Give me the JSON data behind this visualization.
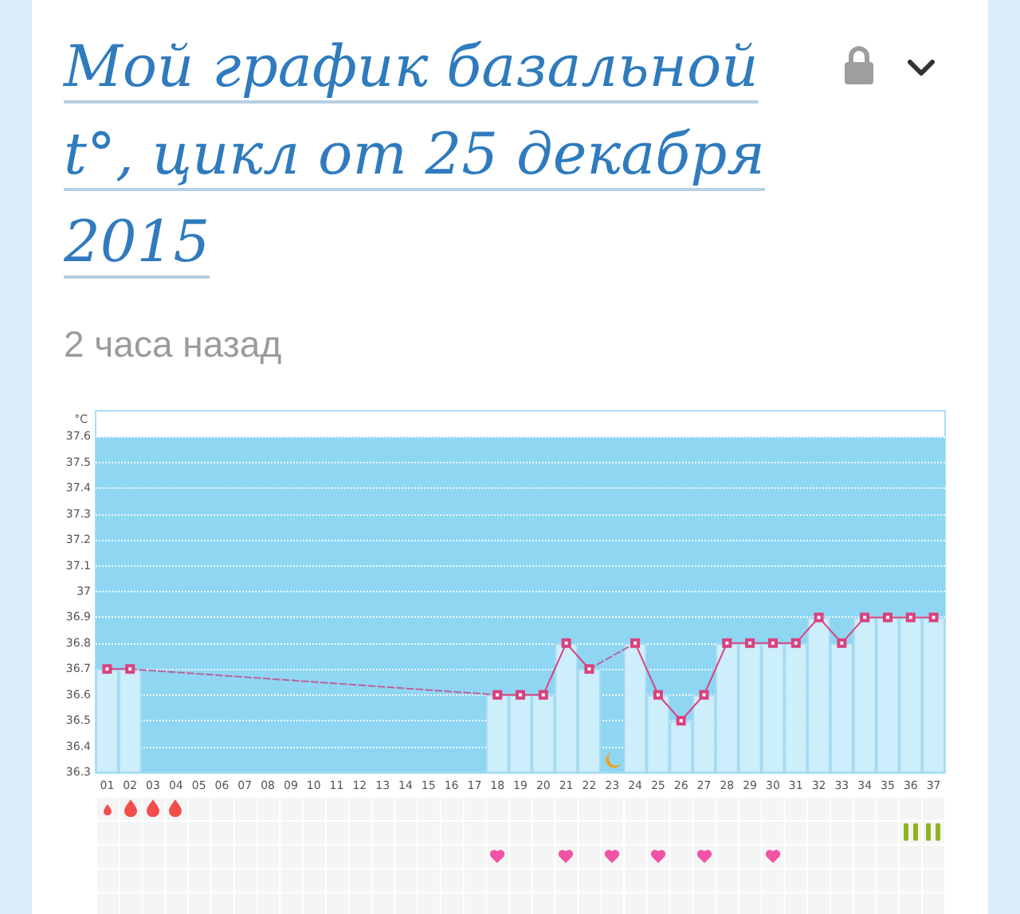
{
  "chart_data": {
    "type": "bar",
    "title": "Мой график базальной t°, цикл от 25 декабря 2015",
    "subtitle": "2 часа назад",
    "ylabel": "°C",
    "categories": [
      "01",
      "02",
      "03",
      "04",
      "05",
      "06",
      "07",
      "08",
      "09",
      "10",
      "11",
      "12",
      "13",
      "14",
      "15",
      "16",
      "17",
      "18",
      "19",
      "20",
      "21",
      "22",
      "23",
      "24",
      "25",
      "26",
      "27",
      "28",
      "29",
      "30",
      "31",
      "32",
      "33",
      "34",
      "35",
      "36",
      "37"
    ],
    "series": [
      {
        "type": "bar",
        "color": "#cdeefb",
        "values": [
          36.7,
          36.7,
          null,
          null,
          null,
          null,
          null,
          null,
          null,
          null,
          null,
          null,
          null,
          null,
          null,
          null,
          null,
          36.6,
          36.6,
          36.6,
          36.8,
          36.7,
          null,
          36.8,
          36.6,
          36.5,
          36.6,
          36.8,
          36.8,
          36.8,
          36.8,
          36.9,
          36.8,
          36.9,
          36.9,
          36.9,
          36.9
        ]
      },
      {
        "type": "line",
        "color": "#d9417e",
        "marker": "square",
        "line_style": "solid",
        "values": [
          36.7,
          36.7,
          null,
          null,
          null,
          null,
          null,
          null,
          null,
          null,
          null,
          null,
          null,
          null,
          null,
          null,
          null,
          36.6,
          36.6,
          36.6,
          36.8,
          36.7,
          null,
          36.8,
          36.6,
          36.5,
          36.6,
          36.8,
          36.8,
          36.8,
          36.8,
          36.9,
          36.8,
          36.9,
          36.9,
          36.9,
          36.9
        ]
      },
      {
        "type": "line",
        "color": "#b8649c",
        "marker": "none",
        "line_style": "dashed",
        "x": [
          "02",
          "18"
        ],
        "values": [
          36.7,
          36.6
        ]
      },
      {
        "type": "line",
        "color": "#b8649c",
        "marker": "none",
        "line_style": "dashed",
        "x": [
          "22",
          "24"
        ],
        "values": [
          36.7,
          36.8
        ]
      }
    ],
    "ylim": [
      36.3,
      37.7
    ],
    "yticks": [
      36.3,
      36.4,
      36.5,
      36.6,
      36.7,
      36.8,
      36.9,
      37,
      37.1,
      37.2,
      37.3,
      37.4,
      37.5,
      37.6
    ],
    "grid": "y",
    "bands": [
      {
        "axis": "y",
        "from": 36.3,
        "to": 37.6,
        "color": "#8fd6f2"
      }
    ]
  }
}
